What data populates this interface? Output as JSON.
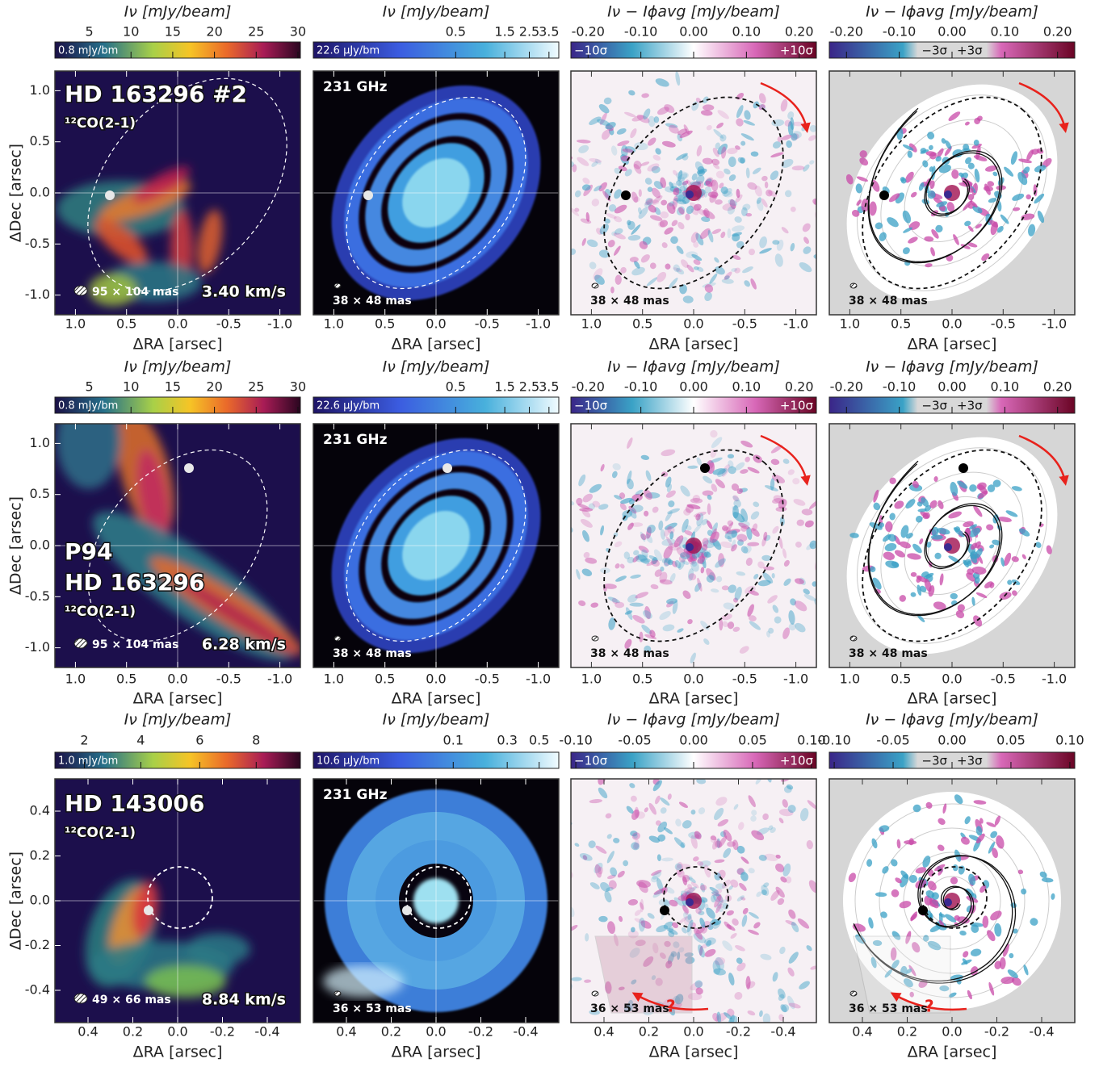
{
  "rows": [
    {
      "panels": [
        {
          "colorbar": {
            "label": "Iν [mJy/beam]",
            "ticks": [
              "5",
              "10",
              "15",
              "20",
              "25",
              "30"
            ],
            "note": "0.8 mJy/bm"
          },
          "labels": [
            "HD 163296 #2"
          ],
          "line": "¹²CO(2-1)",
          "beam": "95 × 104 mas",
          "velocity": "3.40 km/s",
          "x_ticks": [
            "1.0",
            "0.5",
            "0.0",
            "-0.5",
            "-1.0"
          ],
          "x_label": "ΔRA [arsec]",
          "y_ticks": [
            "1.0",
            "0.5",
            "0.0",
            "-0.5",
            "-1.0"
          ],
          "y_label": "ΔDec [arsec]"
        },
        {
          "colorbar": {
            "label": "Iν [mJy/beam]",
            "ticks": [
              "0.5",
              "1.5",
              "2.5",
              "3.5"
            ],
            "note": "22.6 μJy/bm"
          },
          "frequency": "231 GHz",
          "beam": "38 × 48 mas",
          "x_ticks": [
            "1.0",
            "0.5",
            "0.0",
            "-0.5",
            "-1.0"
          ],
          "x_label": "ΔRA [arsec]"
        },
        {
          "colorbar": {
            "label": "Iν − Iϕavg [mJy/beam]",
            "ticks": [
              "-0.20",
              "-0.10",
              "0.00",
              "0.10",
              "0.20"
            ],
            "low": "−10σ",
            "high": "+10σ"
          },
          "beam": "38 × 48 mas",
          "x_ticks": [
            "1.0",
            "0.5",
            "0.0",
            "-0.5",
            "-1.0"
          ],
          "x_label": "ΔRA [arsec]"
        },
        {
          "colorbar": {
            "label": "Iν − Iϕavg [mJy/beam]",
            "ticks": [
              "-0.20",
              "-0.10",
              "0.00",
              "0.10",
              "0.20"
            ],
            "low": "−3σ",
            "high": "+3σ"
          },
          "beam": "38 × 48 mas",
          "x_ticks": [
            "1.0",
            "0.5",
            "0.0",
            "-0.5",
            "-1.0"
          ],
          "x_label": "ΔRA [arsec]"
        }
      ]
    },
    {
      "panels": [
        {
          "colorbar": {
            "label": "Iν [mJy/beam]",
            "ticks": [
              "5",
              "10",
              "15",
              "20",
              "25",
              "30"
            ],
            "note": "0.8 mJy/bm"
          },
          "labels": [
            "P94",
            "HD 163296"
          ],
          "line": "¹²CO(2-1)",
          "beam": "95 × 104 mas",
          "velocity": "6.28 km/s",
          "x_ticks": [
            "1.0",
            "0.5",
            "0.0",
            "-0.5",
            "-1.0"
          ],
          "x_label": "ΔRA [arsec]",
          "y_ticks": [
            "1.0",
            "0.5",
            "0.0",
            "-0.5",
            "-1.0"
          ],
          "y_label": "ΔDec [arsec]"
        },
        {
          "colorbar": {
            "label": "Iν [mJy/beam]",
            "ticks": [
              "0.5",
              "1.5",
              "2.5",
              "3.5"
            ],
            "note": "22.6 μJy/bm"
          },
          "frequency": "231 GHz",
          "beam": "38 × 48 mas",
          "x_ticks": [
            "1.0",
            "0.5",
            "0.0",
            "-0.5",
            "-1.0"
          ],
          "x_label": "ΔRA [arsec]"
        },
        {
          "colorbar": {
            "label": "Iν − Iϕavg [mJy/beam]",
            "ticks": [
              "-0.20",
              "-0.10",
              "0.00",
              "0.10",
              "0.20"
            ],
            "low": "−10σ",
            "high": "+10σ"
          },
          "beam": "38 × 48 mas",
          "x_ticks": [
            "1.0",
            "0.5",
            "0.0",
            "-0.5",
            "-1.0"
          ],
          "x_label": "ΔRA [arsec]"
        },
        {
          "colorbar": {
            "label": "Iν − Iϕavg [mJy/beam]",
            "ticks": [
              "-0.20",
              "-0.10",
              "0.00",
              "0.10",
              "0.20"
            ],
            "low": "−3σ",
            "high": "+3σ"
          },
          "beam": "38 × 48 mas",
          "x_ticks": [
            "1.0",
            "0.5",
            "0.0",
            "-0.5",
            "-1.0"
          ],
          "x_label": "ΔRA [arsec]"
        }
      ]
    },
    {
      "panels": [
        {
          "colorbar": {
            "label": "Iν [mJy/beam]",
            "ticks": [
              "2",
              "4",
              "6",
              "8"
            ],
            "note": "1.0 mJy/bm"
          },
          "labels": [
            "HD 143006"
          ],
          "line": "¹²CO(2-1)",
          "beam": "49 × 66 mas",
          "velocity": "8.84 km/s",
          "x_ticks": [
            "0.4",
            "0.2",
            "0.0",
            "-0.2",
            "-0.4"
          ],
          "x_label": "ΔRA [arsec]",
          "y_ticks": [
            "0.4",
            "0.2",
            "0.0",
            "-0.2",
            "-0.4"
          ],
          "y_label": "ΔDec [arsec]"
        },
        {
          "colorbar": {
            "label": "Iν [mJy/beam]",
            "ticks": [
              "0.1",
              "0.3",
              "0.5"
            ],
            "note": "10.6 μJy/bm"
          },
          "frequency": "231 GHz",
          "beam": "36 × 53 mas",
          "x_ticks": [
            "0.4",
            "0.2",
            "0.0",
            "-0.2",
            "-0.4"
          ],
          "x_label": "ΔRA [arsec]"
        },
        {
          "colorbar": {
            "label": "Iν − Iϕavg [mJy/beam]",
            "ticks": [
              "-0.10",
              "-0.05",
              "0.00",
              "0.05",
              "0.10"
            ],
            "low": "−10σ",
            "high": "+10σ"
          },
          "beam": "36 × 53 mas",
          "question": "?",
          "x_ticks": [
            "0.4",
            "0.2",
            "0.0",
            "-0.2",
            "-0.4"
          ],
          "x_label": "ΔRA [arsec]"
        },
        {
          "colorbar": {
            "label": "Iν − Iϕavg [mJy/beam]",
            "ticks": [
              "-0.10",
              "-0.05",
              "0.00",
              "0.05",
              "0.10"
            ],
            "low": "−3σ",
            "high": "+3σ"
          },
          "beam": "36 × 53 mas",
          "question": "?",
          "x_ticks": [
            "0.4",
            "0.2",
            "0.0",
            "-0.2",
            "-0.4"
          ],
          "x_label": "ΔRA [arsec]"
        }
      ]
    }
  ]
}
